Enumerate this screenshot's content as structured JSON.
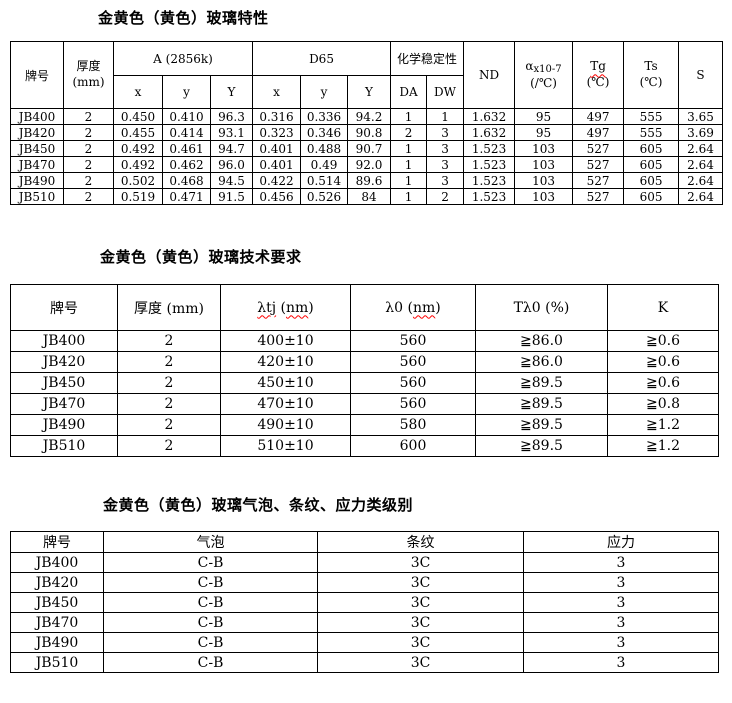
{
  "colors": {
    "background": "#ffffff",
    "text": "#000000",
    "border": "#000000",
    "spellcheck_underline": "#ff0000"
  },
  "titles": {
    "t1": "金黄色（黄色）玻璃特性",
    "t2": "金黄色（黄色）玻璃技术要求",
    "t3": "金黄色（黄色）玻璃气泡、条纹、应力类级别"
  },
  "table1": {
    "h": {
      "brand": "牌号",
      "thickness1": "厚度",
      "thickness2": "(mm)",
      "a": "A (2856k)",
      "d65": "D65",
      "chem": "化学稳定性",
      "x1": "x",
      "y1": "y",
      "Y1": "Y",
      "x2": "x",
      "y2": "y",
      "Y2": "Y",
      "da": "DA",
      "dw": "DW",
      "nd": "ND",
      "alpha": "α",
      "alpha_sub": "x10-7",
      "alpha2": "(/℃)",
      "tg": "Tg",
      "tg2": "(℃)",
      "ts": "Ts",
      "ts2": "(℃)",
      "s": "S"
    },
    "rows": [
      [
        "JB400",
        "2",
        "0.450",
        "0.410",
        "96.3",
        "0.316",
        "0.336",
        "94.2",
        "1",
        "1",
        "1.632",
        "95",
        "497",
        "555",
        "3.65"
      ],
      [
        "JB420",
        "2",
        "0.455",
        "0.414",
        "93.1",
        "0.323",
        "0.346",
        "90.8",
        "2",
        "3",
        "1.632",
        "95",
        "497",
        "555",
        "3.69"
      ],
      [
        "JB450",
        "2",
        "0.492",
        "0.461",
        "94.7",
        "0.401",
        "0.488",
        "90.7",
        "1",
        "3",
        "1.523",
        "103",
        "527",
        "605",
        "2.64"
      ],
      [
        "JB470",
        "2",
        "0.492",
        "0.462",
        "96.0",
        "0.401",
        "0.49",
        "92.0",
        "1",
        "3",
        "1.523",
        "103",
        "527",
        "605",
        "2.64"
      ],
      [
        "JB490",
        "2",
        "0.502",
        "0.468",
        "94.5",
        "0.422",
        "0.514",
        "89.6",
        "1",
        "3",
        "1.523",
        "103",
        "527",
        "605",
        "2.64"
      ],
      [
        "JB510",
        "2",
        "0.519",
        "0.471",
        "91.5",
        "0.456",
        "0.526",
        "84",
        "1",
        "2",
        "1.523",
        "103",
        "527",
        "605",
        "2.64"
      ]
    ]
  },
  "table2": {
    "h": {
      "brand": "牌号",
      "thickness": "厚度 (mm)",
      "ltj": {
        "pre": "λtj",
        "open": " (",
        "unit": "nm",
        "close": ")"
      },
      "l0": {
        "pre": "λ0",
        "open": " (",
        "unit": "nm",
        "close": ")"
      },
      "tl0": "Tλ0 (%)",
      "k": "K"
    },
    "rows": [
      [
        "JB400",
        "2",
        "400±10",
        "560",
        "≧86.0",
        "≧0.6"
      ],
      [
        "JB420",
        "2",
        "420±10",
        "560",
        "≧86.0",
        "≧0.6"
      ],
      [
        "JB450",
        "2",
        "450±10",
        "560",
        "≧89.5",
        "≧0.6"
      ],
      [
        "JB470",
        "2",
        "470±10",
        "560",
        "≧89.5",
        "≧0.8"
      ],
      [
        "JB490",
        "2",
        "490±10",
        "580",
        "≧89.5",
        "≧1.2"
      ],
      [
        "JB510",
        "2",
        "510±10",
        "600",
        "≧89.5",
        "≧1.2"
      ]
    ]
  },
  "table3": {
    "h": {
      "brand": "牌号",
      "bubble": "气泡",
      "stria": "条纹",
      "stress": "应力"
    },
    "rows": [
      [
        "JB400",
        "C-B",
        "3C",
        "3"
      ],
      [
        "JB420",
        "C-B",
        "3C",
        "3"
      ],
      [
        "JB450",
        "C-B",
        "3C",
        "3"
      ],
      [
        "JB470",
        "C-B",
        "3C",
        "3"
      ],
      [
        "JB490",
        "C-B",
        "3C",
        "3"
      ],
      [
        "JB510",
        "C-B",
        "3C",
        "3"
      ]
    ]
  }
}
